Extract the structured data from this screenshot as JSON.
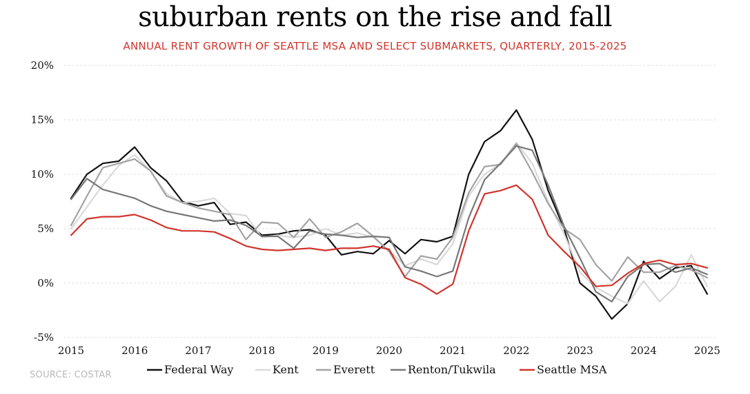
{
  "title": "suburban rents on the rise and fall",
  "subtitle": "ANNUAL RENT GROWTH OF SEATTLE MSA AND SELECT SUBMARKETS, QUARTERLY, 2015-2025",
  "source": "SOURCE: COSTAR",
  "chart_data": {
    "type": "line",
    "title": "suburban rents on the rise and fall",
    "subtitle": "ANNUAL RENT GROWTH OF SEATTLE MSA AND SELECT SUBMARKETS, QUARTERLY, 2015-2025",
    "xlabel": "",
    "ylabel": "",
    "xlim": [
      2015,
      2025
    ],
    "ylim": [
      -5,
      20
    ],
    "x_ticks": [
      "2015",
      "2016",
      "2017",
      "2018",
      "2019",
      "2020",
      "2021",
      "2022",
      "2023",
      "2024",
      "2025"
    ],
    "y_ticks": [
      "20%",
      "15%",
      "10%",
      "5%",
      "0%",
      "-5%"
    ],
    "grid": "horizontal dashed",
    "legend_position": "bottom",
    "x": [
      2015.0,
      2015.25,
      2015.5,
      2015.75,
      2016.0,
      2016.25,
      2016.5,
      2016.75,
      2017.0,
      2017.25,
      2017.5,
      2017.75,
      2018.0,
      2018.25,
      2018.5,
      2018.75,
      2019.0,
      2019.25,
      2019.5,
      2019.75,
      2020.0,
      2020.25,
      2020.5,
      2020.75,
      2021.0,
      2021.25,
      2021.5,
      2021.75,
      2022.0,
      2022.25,
      2022.5,
      2022.75,
      2023.0,
      2023.25,
      2023.5,
      2023.75,
      2024.0,
      2024.25,
      2024.5,
      2024.75,
      2025.0
    ],
    "series": [
      {
        "name": "Federal Way",
        "color": "#111111",
        "values": [
          7.8,
          10.0,
          11.0,
          11.2,
          12.5,
          10.6,
          9.4,
          7.5,
          7.1,
          7.4,
          5.4,
          5.6,
          4.4,
          4.5,
          4.8,
          4.9,
          4.4,
          2.6,
          2.9,
          2.7,
          3.9,
          2.7,
          4.0,
          3.8,
          4.3,
          10.0,
          13.0,
          14.0,
          15.9,
          13.2,
          8.5,
          5.0,
          0.0,
          -1.2,
          -3.3,
          -1.9,
          2.0,
          0.4,
          1.4,
          1.6,
          -1.0
        ]
      },
      {
        "name": "Kent",
        "color": "#d9d9d9",
        "values": [
          5.0,
          7.0,
          9.0,
          10.8,
          11.8,
          10.3,
          8.2,
          7.4,
          7.5,
          7.8,
          6.4,
          6.2,
          4.2,
          4.4,
          4.2,
          4.4,
          5.0,
          4.4,
          4.6,
          4.2,
          3.0,
          1.6,
          2.2,
          1.7,
          3.6,
          8.0,
          10.0,
          11.0,
          12.9,
          11.0,
          7.5,
          4.5,
          1.0,
          -0.4,
          -1.2,
          -1.9,
          0.2,
          -1.7,
          -0.3,
          2.6,
          -0.3
        ]
      },
      {
        "name": "Everett",
        "color": "#a3a3a3",
        "values": [
          5.3,
          8.0,
          10.6,
          11.0,
          11.4,
          10.3,
          8.0,
          7.4,
          6.9,
          6.6,
          6.3,
          4.0,
          5.6,
          5.5,
          4.2,
          5.9,
          4.2,
          4.7,
          5.5,
          4.3,
          2.9,
          0.6,
          2.5,
          2.2,
          4.2,
          8.3,
          10.7,
          10.9,
          12.8,
          10.2,
          7.3,
          5.0,
          4.0,
          1.7,
          0.2,
          2.4,
          1.0,
          1.0,
          1.6,
          1.2,
          0.5
        ]
      },
      {
        "name": "Renton/Tukwila",
        "color": "#777777",
        "values": [
          7.7,
          9.6,
          8.6,
          8.2,
          7.8,
          7.1,
          6.6,
          6.3,
          6.0,
          5.7,
          5.8,
          5.3,
          4.3,
          4.3,
          3.2,
          4.8,
          4.5,
          4.4,
          4.2,
          4.3,
          4.2,
          1.5,
          1.1,
          0.6,
          1.1,
          6.0,
          9.5,
          11.0,
          12.6,
          12.2,
          9.0,
          5.2,
          2.3,
          -0.8,
          -1.7,
          0.6,
          1.7,
          1.8,
          1.0,
          1.4,
          0.8
        ]
      },
      {
        "name": "Seattle MSA",
        "color": "#d0342c",
        "values": [
          4.4,
          5.9,
          6.1,
          6.1,
          6.3,
          5.8,
          5.1,
          4.8,
          4.8,
          4.7,
          4.1,
          3.4,
          3.1,
          3.0,
          3.1,
          3.2,
          3.0,
          3.2,
          3.2,
          3.4,
          3.1,
          0.5,
          -0.1,
          -1.0,
          -0.1,
          4.8,
          8.2,
          8.5,
          9.0,
          7.7,
          4.4,
          2.9,
          1.5,
          -0.3,
          -0.2,
          0.9,
          1.8,
          2.1,
          1.7,
          1.8,
          1.4
        ]
      }
    ]
  }
}
